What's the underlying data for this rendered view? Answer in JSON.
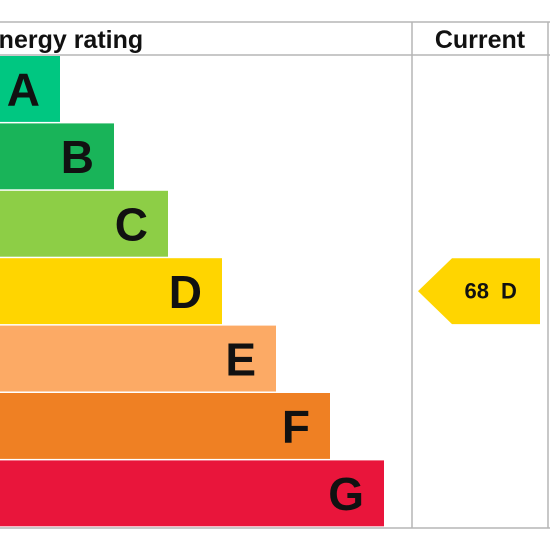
{
  "header": {
    "title": "Energy rating",
    "current": "Current"
  },
  "bands": [
    {
      "letter": "A",
      "color": "#00c781"
    },
    {
      "letter": "B",
      "color": "#19b459"
    },
    {
      "letter": "C",
      "color": "#8dce46"
    },
    {
      "letter": "D",
      "color": "#ffd500"
    },
    {
      "letter": "E",
      "color": "#fcaa65"
    },
    {
      "letter": "F",
      "color": "#ef8023"
    },
    {
      "letter": "G",
      "color": "#e9153b"
    }
  ],
  "current": {
    "score": 68,
    "band": "D",
    "color": "#ffd500"
  }
}
